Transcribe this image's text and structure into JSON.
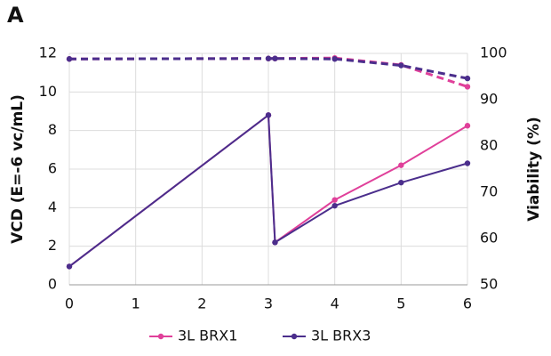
{
  "chart_data": {
    "type": "line",
    "panel_label": "A",
    "y_label": "VCD (E=-6 vc/mL)",
    "y2_label": "Viability (%)",
    "x": [
      0,
      3,
      3.1,
      4,
      5,
      6
    ],
    "xlim": [
      0,
      6
    ],
    "xticks": [
      0,
      1,
      2,
      3,
      4,
      5,
      6
    ],
    "ylim": [
      0,
      12
    ],
    "yticks": [
      0,
      2,
      4,
      6,
      8,
      10,
      12
    ],
    "y2lim": [
      50,
      100
    ],
    "y2ticks": [
      50,
      60,
      70,
      80,
      90,
      100
    ],
    "grid": true,
    "legend": "bottom",
    "series": [
      {
        "name": "3L BRX1",
        "color": "#e0409a",
        "values": [
          0.95,
          8.8,
          2.2,
          4.4,
          6.2,
          8.25
        ]
      },
      {
        "name": "3L BRX3",
        "color": "#4b2e8c",
        "values": [
          0.95,
          8.8,
          2.2,
          4.1,
          5.3,
          6.3
        ]
      },
      {
        "color": "#e0409a",
        "axis": "y2",
        "dashed": true,
        "values": [
          98.8,
          98.9,
          98.9,
          99.0,
          97.5,
          92.8
        ]
      },
      {
        "color": "#4b2e8c",
        "axis": "y2",
        "dashed": true,
        "values": [
          98.8,
          98.9,
          98.9,
          98.8,
          97.4,
          94.6
        ]
      }
    ]
  }
}
